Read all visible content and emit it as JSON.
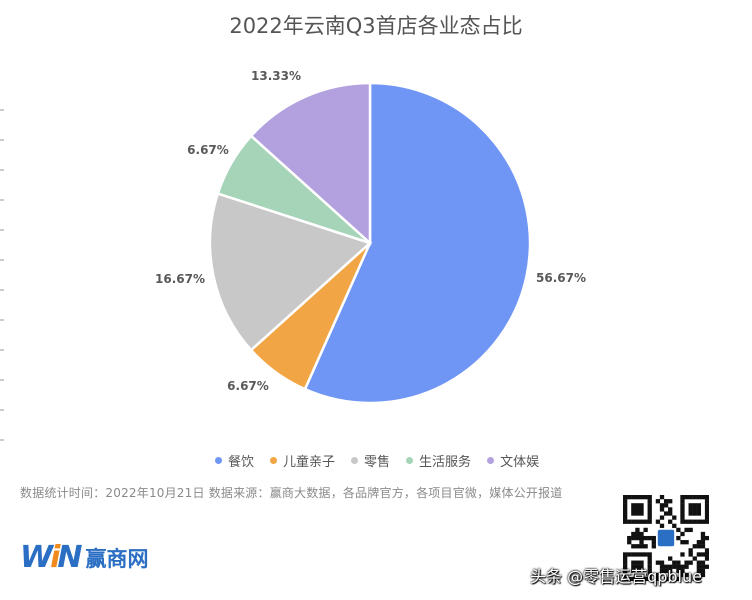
{
  "chart_data": {
    "type": "pie",
    "title": "2022年云南Q3首店各业态占比",
    "categories": [
      "餐饮",
      "儿童亲子",
      "零售",
      "生活服务",
      "文体娱"
    ],
    "values": [
      56.67,
      6.67,
      16.67,
      6.67,
      13.33
    ],
    "labels": [
      "56.67%",
      "6.67%",
      "16.67%",
      "6.67%",
      "13.33%"
    ],
    "colors": [
      "#6f96f5",
      "#f2a545",
      "#c8c8c8",
      "#a6d4b8",
      "#b3a1df"
    ],
    "legend_position": "bottom"
  },
  "source_text": "数据统计时间：2022年10月21日 数据来源：赢商大数据，各品牌官方，各项目官微，媒体公开报道",
  "logo": {
    "mark_w": "W",
    "mark_i": "i",
    "mark_n": "N",
    "text": "赢商网"
  },
  "watermark": "头条 @零售运营qpblue",
  "qr_icon": "qr-code-icon"
}
